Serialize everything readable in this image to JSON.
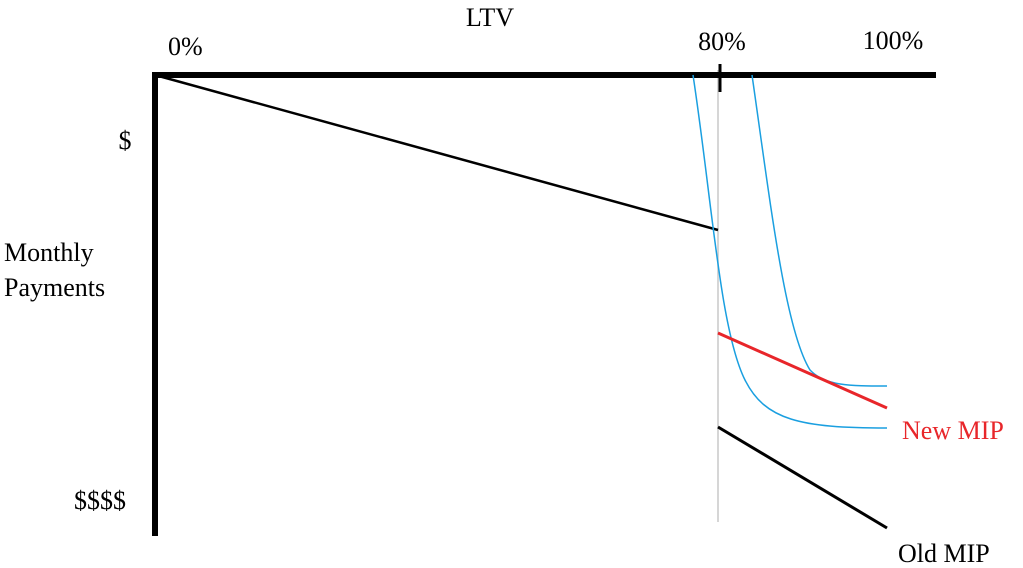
{
  "diagram": {
    "x_axis_title": "LTV",
    "x_labels": [
      "0%",
      "80%",
      "100%"
    ],
    "y_axis_title": [
      "Monthly",
      "Payments"
    ],
    "y_labels": [
      "$",
      "$$$$"
    ],
    "curve_labels": {
      "new": "New MIP",
      "old": "Old MIP"
    }
  }
}
